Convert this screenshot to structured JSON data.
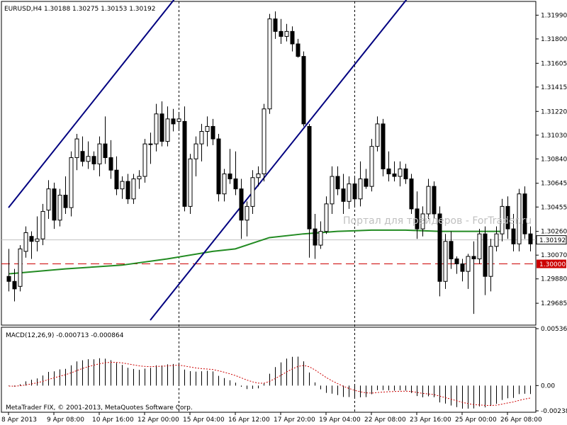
{
  "chart_data": {
    "type": "candlestick",
    "title": "EURUSD,H4  1.30188 1.30275 1.30153 1.30192",
    "symbol": "EURUSD",
    "timeframe": "H4",
    "last_bar": {
      "open": 1.30188,
      "high": 1.30275,
      "low": 1.30153,
      "close": 1.30192
    },
    "watermark": "Портал для трейдеров - ForTrader.ru",
    "copyright": "MetaTrader FIX, © 2001-2013, MetaQuotes Software Corp.",
    "price_axis": {
      "ylim": [
        1.2951,
        1.321
      ],
      "ticks": [
        "1.31990",
        "1.31800",
        "1.31605",
        "1.31415",
        "1.31220",
        "1.31030",
        "1.30840",
        "1.30645",
        "1.30455",
        "1.30260",
        "1.30070",
        "1.29880",
        "1.29685"
      ]
    },
    "current_price_label": "1.30192",
    "current_price": 1.30192,
    "level_line": {
      "value": 1.3,
      "label": "1.30000",
      "color": "#cc0000",
      "style": "dashed"
    },
    "time_axis": {
      "labels": [
        {
          "text": "8 Apr 2013",
          "bar": 0
        },
        {
          "text": "9 Apr 08:00",
          "bar": 8
        },
        {
          "text": "10 Apr 16:00",
          "bar": 16
        },
        {
          "text": "12 Apr 00:00",
          "bar": 24
        },
        {
          "text": "15 Apr 04:00",
          "bar": 32
        },
        {
          "text": "16 Apr 12:00",
          "bar": 40
        },
        {
          "text": "17 Apr 20:00",
          "bar": 48
        },
        {
          "text": "19 Apr 04:00",
          "bar": 56
        },
        {
          "text": "22 Apr 08:00",
          "bar": 64
        },
        {
          "text": "23 Apr 16:00",
          "bar": 72
        },
        {
          "text": "25 Apr 00:00",
          "bar": 80
        },
        {
          "text": "26 Apr 08:00",
          "bar": 88
        }
      ]
    },
    "vertical_separators_bars": [
      30,
      61
    ],
    "trend_channel": {
      "color": "#000080",
      "lines": [
        {
          "bar1": 0,
          "price1": 1.3045,
          "bar2": 30,
          "price2": 1.3216
        },
        {
          "bar1": 25,
          "price1": 1.2955,
          "bar2": 71,
          "price2": 1.3216
        }
      ]
    },
    "moving_average": {
      "color": "#228b22",
      "points": [
        [
          0,
          1.2992
        ],
        [
          10,
          1.2996
        ],
        [
          20,
          1.2999
        ],
        [
          28,
          1.3004
        ],
        [
          36,
          1.301
        ],
        [
          40,
          1.3012
        ],
        [
          46,
          1.3021
        ],
        [
          52,
          1.3024
        ],
        [
          58,
          1.3026
        ],
        [
          64,
          1.3027
        ],
        [
          70,
          1.3027
        ],
        [
          76,
          1.3026
        ],
        [
          80,
          1.3026
        ],
        [
          87,
          1.3026
        ]
      ]
    },
    "candles": [
      [
        1.299,
        1.3012,
        1.2978,
        1.2986
      ],
      [
        1.2986,
        1.2996,
        1.297,
        1.298
      ],
      [
        1.2982,
        1.3015,
        1.2978,
        1.3012
      ],
      [
        1.301,
        1.303,
        1.3005,
        1.3025
      ],
      [
        1.3022,
        1.3026,
        1.3004,
        1.3018
      ],
      [
        1.3018,
        1.3038,
        1.301,
        1.302
      ],
      [
        1.302,
        1.3048,
        1.3015,
        1.3042
      ],
      [
        1.3043,
        1.3067,
        1.3036,
        1.306
      ],
      [
        1.306,
        1.3065,
        1.3028,
        1.3035
      ],
      [
        1.3035,
        1.306,
        1.303,
        1.3055
      ],
      [
        1.3055,
        1.307,
        1.304,
        1.3045
      ],
      [
        1.3045,
        1.309,
        1.3038,
        1.3085
      ],
      [
        1.3085,
        1.3104,
        1.3075,
        1.31
      ],
      [
        1.309,
        1.3102,
        1.3078,
        1.3082
      ],
      [
        1.3082,
        1.3098,
        1.3076,
        1.3086
      ],
      [
        1.3086,
        1.309,
        1.3075,
        1.308
      ],
      [
        1.308,
        1.3102,
        1.307,
        1.3096
      ],
      [
        1.3096,
        1.3118,
        1.308,
        1.3085
      ],
      [
        1.3085,
        1.3099,
        1.3068,
        1.3075
      ],
      [
        1.3075,
        1.3086,
        1.3055,
        1.306
      ],
      [
        1.306,
        1.307,
        1.3052,
        1.3066
      ],
      [
        1.3066,
        1.3072,
        1.3048,
        1.3052
      ],
      [
        1.3052,
        1.3072,
        1.3048,
        1.3068
      ],
      [
        1.3068,
        1.3075,
        1.306,
        1.307
      ],
      [
        1.307,
        1.31,
        1.3065,
        1.3096
      ],
      [
        1.3096,
        1.3105,
        1.308,
        1.3096
      ],
      [
        1.3096,
        1.3128,
        1.309,
        1.312
      ],
      [
        1.312,
        1.313,
        1.3094,
        1.3098
      ],
      [
        1.3098,
        1.3126,
        1.3094,
        1.3116
      ],
      [
        1.3116,
        1.3124,
        1.3106,
        1.3112
      ],
      [
        1.3114,
        1.312,
        1.3108,
        1.3116
      ],
      [
        1.3114,
        1.3126,
        1.3042,
        1.3046
      ],
      [
        1.3046,
        1.3088,
        1.304,
        1.3084
      ],
      [
        1.3084,
        1.3102,
        1.307,
        1.3096
      ],
      [
        1.3096,
        1.3112,
        1.3082,
        1.3106
      ],
      [
        1.3106,
        1.3118,
        1.3094,
        1.311
      ],
      [
        1.311,
        1.3116,
        1.3095,
        1.31
      ],
      [
        1.31,
        1.3104,
        1.305,
        1.3056
      ],
      [
        1.3056,
        1.3076,
        1.305,
        1.3072
      ],
      [
        1.3072,
        1.3092,
        1.3064,
        1.3068
      ],
      [
        1.3068,
        1.309,
        1.3055,
        1.306
      ],
      [
        1.306,
        1.3068,
        1.302,
        1.3035
      ],
      [
        1.3035,
        1.305,
        1.3022,
        1.3046
      ],
      [
        1.3046,
        1.3075,
        1.304,
        1.3069
      ],
      [
        1.3069,
        1.3078,
        1.3062,
        1.3072
      ],
      [
        1.3072,
        1.3128,
        1.3066,
        1.3124
      ],
      [
        1.3124,
        1.32,
        1.312,
        1.3196
      ],
      [
        1.3196,
        1.3202,
        1.318,
        1.3186
      ],
      [
        1.3186,
        1.3196,
        1.3176,
        1.3182
      ],
      [
        1.3182,
        1.3192,
        1.3178,
        1.3186
      ],
      [
        1.3186,
        1.319,
        1.317,
        1.3176
      ],
      [
        1.3176,
        1.318,
        1.3165,
        1.3166
      ],
      [
        1.3166,
        1.317,
        1.311,
        1.3112
      ],
      [
        1.311,
        1.3112,
        1.3005,
        1.3028
      ],
      [
        1.3028,
        1.304,
        1.3004,
        1.3015
      ],
      [
        1.3015,
        1.3034,
        1.3012,
        1.3026
      ],
      [
        1.3026,
        1.3054,
        1.3024,
        1.3048
      ],
      [
        1.3048,
        1.3078,
        1.304,
        1.307
      ],
      [
        1.307,
        1.3078,
        1.3055,
        1.306
      ],
      [
        1.306,
        1.3072,
        1.304,
        1.305
      ],
      [
        1.305,
        1.307,
        1.3044,
        1.3064
      ],
      [
        1.3064,
        1.307,
        1.3045,
        1.3052
      ],
      [
        1.3052,
        1.3082,
        1.3046,
        1.3068
      ],
      [
        1.3068,
        1.3076,
        1.306,
        1.3062
      ],
      [
        1.3062,
        1.31,
        1.3058,
        1.3094
      ],
      [
        1.3094,
        1.3118,
        1.309,
        1.3112
      ],
      [
        1.3112,
        1.3116,
        1.307,
        1.3076
      ],
      [
        1.3076,
        1.309,
        1.3066,
        1.3072
      ],
      [
        1.3072,
        1.3082,
        1.3066,
        1.307
      ],
      [
        1.307,
        1.3082,
        1.3062,
        1.3076
      ],
      [
        1.3076,
        1.308,
        1.3064,
        1.3068
      ],
      [
        1.3068,
        1.3072,
        1.304,
        1.3044
      ],
      [
        1.3044,
        1.3058,
        1.302,
        1.3028
      ],
      [
        1.3028,
        1.3046,
        1.3022,
        1.304
      ],
      [
        1.304,
        1.3068,
        1.3036,
        1.3062
      ],
      [
        1.3062,
        1.3066,
        1.3036,
        1.304
      ],
      [
        1.304,
        1.3046,
        1.2974,
        1.2986
      ],
      [
        1.2986,
        1.3024,
        1.298,
        1.3018
      ],
      [
        1.3018,
        1.3026,
        1.2996,
        1.3004
      ],
      [
        1.3004,
        1.3006,
        1.2992,
        1.3
      ],
      [
        1.3,
        1.3004,
        1.2986,
        1.2994
      ],
      [
        1.2994,
        1.3008,
        1.298,
        1.3006
      ],
      [
        1.3006,
        1.3018,
        1.296,
        1.3004
      ],
      [
        1.3004,
        1.3028,
        1.3,
        1.3024
      ],
      [
        1.3024,
        1.303,
        1.2975,
        1.299
      ],
      [
        1.299,
        1.302,
        1.2978,
        1.3014
      ],
      [
        1.3014,
        1.303,
        1.301,
        1.3024
      ],
      [
        1.3024,
        1.3052,
        1.3018,
        1.3046
      ]
    ],
    "extra_candles": [
      [
        1.3046,
        1.3054,
        1.302,
        1.3028
      ],
      [
        1.3028,
        1.304,
        1.301,
        1.3016
      ],
      [
        1.3016,
        1.306,
        1.301,
        1.3056
      ],
      [
        1.3056,
        1.3062,
        1.302,
        1.3024
      ],
      [
        1.3024,
        1.303,
        1.301,
        1.3016
      ],
      [
        1.3016,
        1.3024,
        1.3005,
        1.302
      ],
      [
        1.302,
        1.303,
        1.3,
        1.3026
      ],
      [
        1.3026,
        1.3036,
        1.3018,
        1.3022
      ],
      [
        1.30188,
        1.30275,
        1.30153,
        1.30192
      ]
    ],
    "macd": {
      "label": "MACD(12,26,9) -0.000713 -0.000864",
      "params": [
        12,
        26,
        9
      ],
      "main_value": -0.000713,
      "signal_value": -0.000864,
      "ticks": [
        "0.005365",
        "0.00",
        "-0.002382"
      ],
      "ylim": [
        -0.002382,
        0.005365
      ],
      "hist_color": "#000000",
      "signal_color": "#cc0000"
    }
  }
}
